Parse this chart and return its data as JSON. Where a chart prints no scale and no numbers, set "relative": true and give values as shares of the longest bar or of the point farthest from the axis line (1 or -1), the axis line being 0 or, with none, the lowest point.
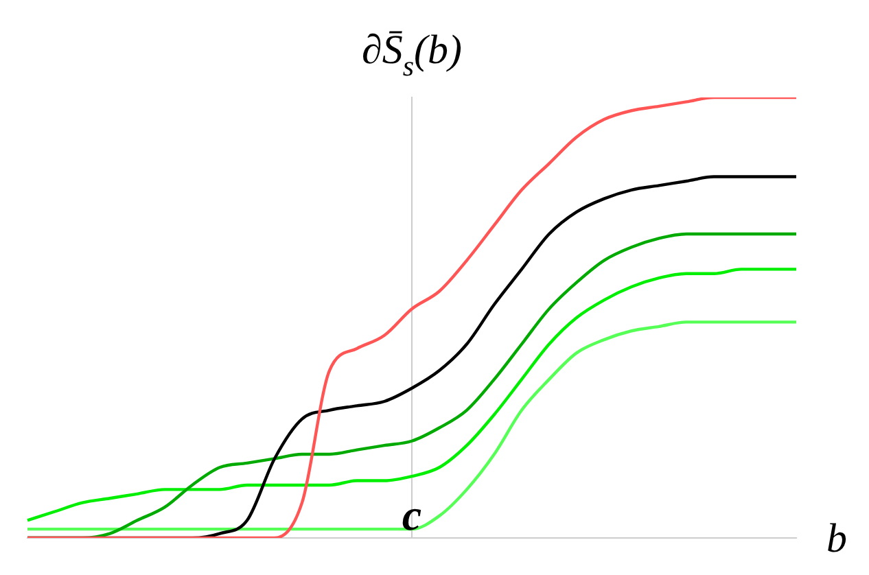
{
  "chart_data": {
    "type": "line",
    "relative": true,
    "xlabel": "b",
    "ylabel": "∂S̄$_{s}$(b)",
    "annotations": [
      "c"
    ],
    "grid": false,
    "legend": false,
    "marker": "none",
    "line_style": "solid",
    "categories": [
      null,
      null,
      null,
      null,
      null,
      null,
      null,
      null,
      null,
      null,
      null,
      null,
      null,
      null,
      null,
      null,
      null,
      null,
      null,
      null,
      null,
      null,
      null,
      null,
      null,
      null,
      null,
      null,
      null
    ],
    "series": [
      {
        "color": "#ff5555",
        "values": [
          0,
          0,
          0,
          0,
          0,
          0,
          0,
          0,
          0,
          0,
          0.08,
          0.38,
          0.43,
          0.46,
          0.52,
          0.56,
          0.63,
          0.71,
          0.79,
          0.85,
          0.91,
          0.95,
          0.97,
          0.98,
          0.99,
          1,
          1,
          1,
          1
        ]
      },
      {
        "color": "#000000",
        "values": [
          0,
          0,
          0,
          0,
          0,
          0,
          0,
          0.01,
          0.04,
          0.18,
          0.27,
          0.29,
          0.3,
          0.31,
          0.34,
          0.38,
          0.44,
          0.53,
          0.61,
          0.69,
          0.74,
          0.77,
          0.79,
          0.8,
          0.81,
          0.82,
          0.82,
          0.82,
          0.82
        ]
      },
      {
        "color": "#00aa00",
        "values": [
          0,
          0,
          0,
          0.01,
          0.04,
          0.07,
          0.12,
          0.16,
          0.17,
          0.18,
          0.19,
          0.19,
          0.2,
          0.21,
          0.22,
          0.25,
          0.29,
          0.36,
          0.44,
          0.52,
          0.58,
          0.63,
          0.66,
          0.68,
          0.69,
          0.69,
          0.69,
          0.69,
          0.69
        ]
      },
      {
        "color": "#00ee00",
        "values": [
          0.04,
          0.06,
          0.08,
          0.09,
          0.1,
          0.11,
          0.11,
          0.11,
          0.12,
          0.12,
          0.12,
          0.12,
          0.13,
          0.13,
          0.14,
          0.16,
          0.21,
          0.28,
          0.36,
          0.44,
          0.5,
          0.54,
          0.57,
          0.59,
          0.6,
          0.6,
          0.61,
          0.61,
          0.61
        ]
      },
      {
        "color": "#55ff55",
        "values": [
          0.02,
          0.02,
          0.02,
          0.02,
          0.02,
          0.02,
          0.02,
          0.02,
          0.02,
          0.02,
          0.02,
          0.02,
          0.02,
          0.02,
          0.02,
          0.05,
          0.11,
          0.19,
          0.29,
          0.36,
          0.42,
          0.45,
          0.47,
          0.48,
          0.49,
          0.49,
          0.49,
          0.49,
          0.49
        ]
      }
    ]
  }
}
